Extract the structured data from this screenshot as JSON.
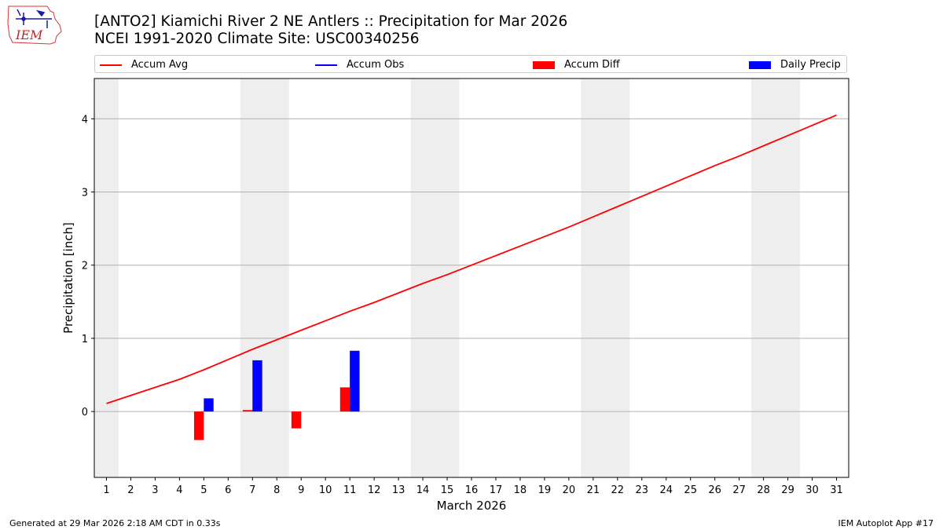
{
  "header": {
    "title_line1": "[ANTO2] Kiamichi River 2 NE Antlers :: Precipitation for Mar 2026",
    "title_line2": "NCEI 1991-2020 Climate Site: USC00340256"
  },
  "logo": {
    "text": "IEM"
  },
  "legend": [
    {
      "label": "Accum Avg",
      "kind": "line",
      "color": "#ff0000"
    },
    {
      "label": "Accum Obs",
      "kind": "line",
      "color": "#0000ff"
    },
    {
      "label": "Accum Diff",
      "kind": "patch",
      "color": "#ff0000"
    },
    {
      "label": "Daily Precip",
      "kind": "patch",
      "color": "#0000ff"
    }
  ],
  "footer": {
    "left": "Generated at 29 Mar 2026 2:18 AM CDT in 0.33s",
    "right": "IEM Autoplot App #17"
  },
  "chart_data": {
    "type": "bar",
    "title": "[ANTO2] Kiamichi River 2 NE Antlers :: Precipitation for Mar 2026",
    "xlabel": "March 2026",
    "ylabel": "Precipitation [inch]",
    "xlim": [
      0.5,
      31.5
    ],
    "ylim": [
      -0.9,
      4.55
    ],
    "yticks": [
      0,
      1,
      2,
      3,
      4
    ],
    "grid": "y",
    "weekend_shading_days": [
      1,
      7,
      8,
      14,
      15,
      21,
      22,
      28,
      29
    ],
    "days": [
      1,
      2,
      3,
      4,
      5,
      6,
      7,
      8,
      9,
      10,
      11,
      12,
      13,
      14,
      15,
      16,
      17,
      18,
      19,
      20,
      21,
      22,
      23,
      24,
      25,
      26,
      27,
      28,
      29,
      30,
      31
    ],
    "series": [
      {
        "name": "Accum Avg",
        "type": "line",
        "color": "#ff0000",
        "values": [
          0.11,
          0.22,
          0.33,
          0.44,
          0.57,
          0.71,
          0.85,
          0.98,
          1.11,
          1.24,
          1.37,
          1.49,
          1.62,
          1.75,
          1.87,
          2.0,
          2.13,
          2.26,
          2.39,
          2.52,
          2.66,
          2.8,
          2.94,
          3.08,
          3.22,
          3.36,
          3.49,
          3.63,
          3.77,
          3.91,
          4.05
        ]
      },
      {
        "name": "Accum Obs",
        "type": "line",
        "color": "#0000ff",
        "values": []
      },
      {
        "name": "Accum Diff",
        "type": "bar",
        "color": "#ff0000",
        "x": [
          5,
          7,
          9,
          11
        ],
        "values": [
          -0.39,
          0.02,
          -0.23,
          0.33
        ]
      },
      {
        "name": "Daily Precip",
        "type": "bar",
        "color": "#0000ff",
        "x": [
          5,
          7,
          11
        ],
        "values": [
          0.18,
          0.7,
          0.83
        ]
      }
    ]
  }
}
